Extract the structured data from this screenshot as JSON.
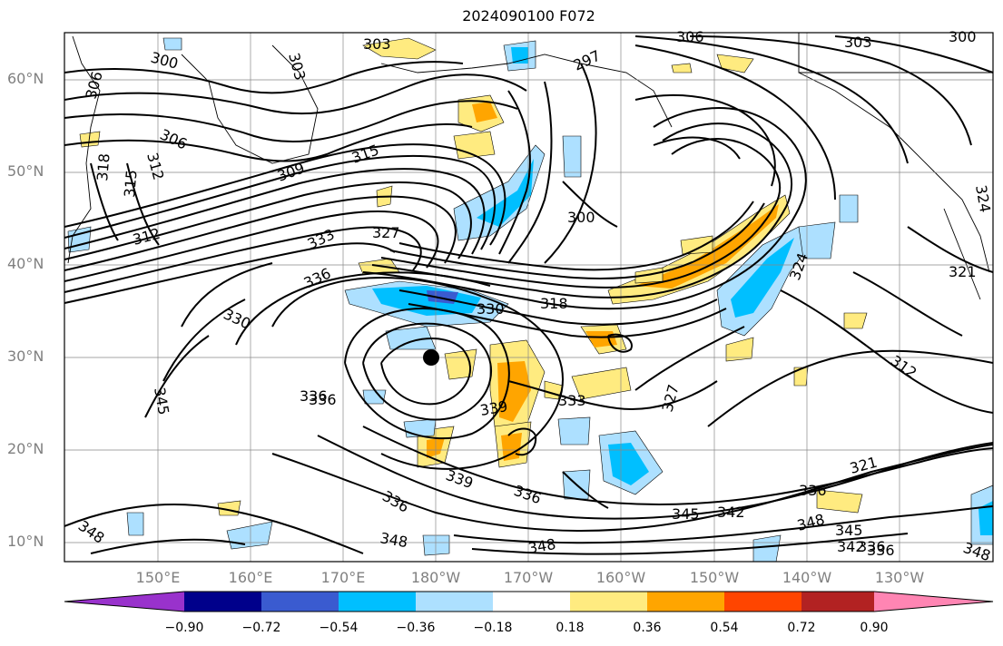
{
  "title": "2024090100 F072",
  "lat_labels": [
    "60°N",
    "50°N",
    "40°N",
    "30°N",
    "20°N",
    "10°N"
  ],
  "lon_labels": [
    "150°E",
    "160°E",
    "170°E",
    "180°W",
    "170°W",
    "160°W",
    "150°W",
    "140°W",
    "130°W"
  ],
  "contour_labels": [
    "303",
    "300",
    "306",
    "297",
    "303",
    "300",
    "306",
    "303",
    "306",
    "318",
    "315",
    "312",
    "315",
    "309",
    "312",
    "300",
    "333",
    "327",
    "336",
    "336",
    "330",
    "330",
    "318",
    "324",
    "321",
    "324",
    "312",
    "345",
    "336",
    "339",
    "333",
    "327",
    "339",
    "336",
    "336",
    "336",
    "321",
    "336",
    "345",
    "342",
    "345",
    "348",
    "348",
    "348",
    "342",
    "336",
    "348",
    "348"
  ],
  "colorbar": {
    "ticks": [
      "−0.90",
      "−0.72",
      "−0.54",
      "−0.36",
      "−0.18",
      "0.18",
      "0.36",
      "0.54",
      "0.72",
      "0.90"
    ],
    "colors": [
      "#9932CC",
      "#00008B",
      "#3A5BD0",
      "#00BFFF",
      "#ADE0FF",
      "#ffffff",
      "#FFEB80",
      "#FFA500",
      "#FF4500",
      "#B22222",
      "#FF85B3"
    ]
  },
  "marker": "storm-center-dot"
}
